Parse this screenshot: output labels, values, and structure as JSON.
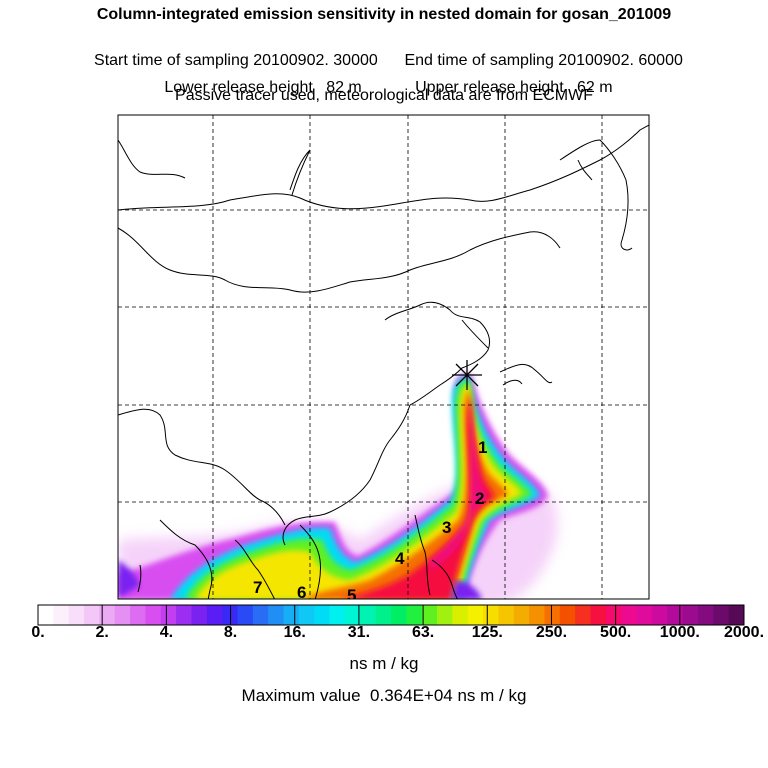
{
  "chart_data": {
    "type": "heatmap",
    "title": "Column-integrated emission sensitivity in nested domain for gosan_201009",
    "subtitle_lines": [
      {
        "left": "Start time of sampling 20100902. 30000",
        "right": "End time of sampling 20100902. 60000"
      },
      {
        "left": "Lower release height   82 m",
        "right": "Upper release height   62 m"
      },
      {
        "center": "Passive tracer used, meteorological data are from ECMWF"
      }
    ],
    "colorbar": {
      "tick_labels": [
        "0.",
        "2.",
        "4.",
        "8.",
        "16.",
        "31.",
        "63.",
        "125.",
        "250.",
        "500.",
        "1000.",
        "2000."
      ],
      "units": "ns m / kg",
      "colors": [
        "#ffffff",
        "#fdf0fd",
        "#f9defb",
        "#f3c8f8",
        "#ecaaf5",
        "#e58ff3",
        "#dd6cf2",
        "#d84ef0",
        "#c33ef0",
        "#9b2ef0",
        "#7a22f0",
        "#5a1ef5",
        "#3a28f5",
        "#2a4af5",
        "#2a6df5",
        "#1f8ff5",
        "#18aef6",
        "#10c8f5",
        "#00dcf5",
        "#00f0f0",
        "#00f5d2",
        "#00f3b0",
        "#00f08c",
        "#00ee64",
        "#20f040",
        "#5ef020",
        "#a0f010",
        "#d8f000",
        "#f5f000",
        "#f5de00",
        "#f5c600",
        "#f5ac00",
        "#f59000",
        "#f57000",
        "#f55000",
        "#f53020",
        "#f51040",
        "#f50a6e",
        "#ee0a90",
        "#e00a9c",
        "#cc0aa0",
        "#b40a9c",
        "#9c0a90",
        "#840a80",
        "#6c0a6c",
        "#560a56"
      ]
    },
    "map_labels": [
      "1",
      "2",
      "3",
      "4",
      "5",
      "6",
      "7"
    ],
    "receptor_marker": "star",
    "max_value_text": "Maximum value  0.364E+04 ns m / kg",
    "grid": true
  }
}
